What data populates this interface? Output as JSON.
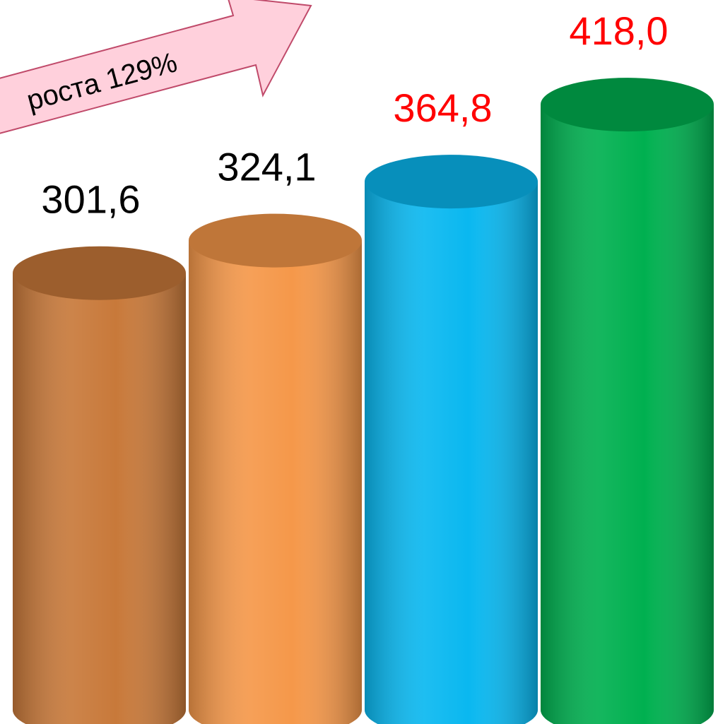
{
  "chart_data": {
    "type": "bar",
    "annotation": "роста 129%",
    "values": [
      301.6,
      324.1,
      364.8,
      418.0
    ],
    "value_labels": [
      "301,6",
      "324,1",
      "364,8",
      "418,0"
    ],
    "colors": [
      "#c8793a",
      "#f5984a",
      "#0ab8f0",
      "#00b050"
    ],
    "label_colors": [
      "#000000",
      "#000000",
      "#ff0000",
      "#ff0000"
    ],
    "ylim": [
      0,
      480
    ]
  }
}
